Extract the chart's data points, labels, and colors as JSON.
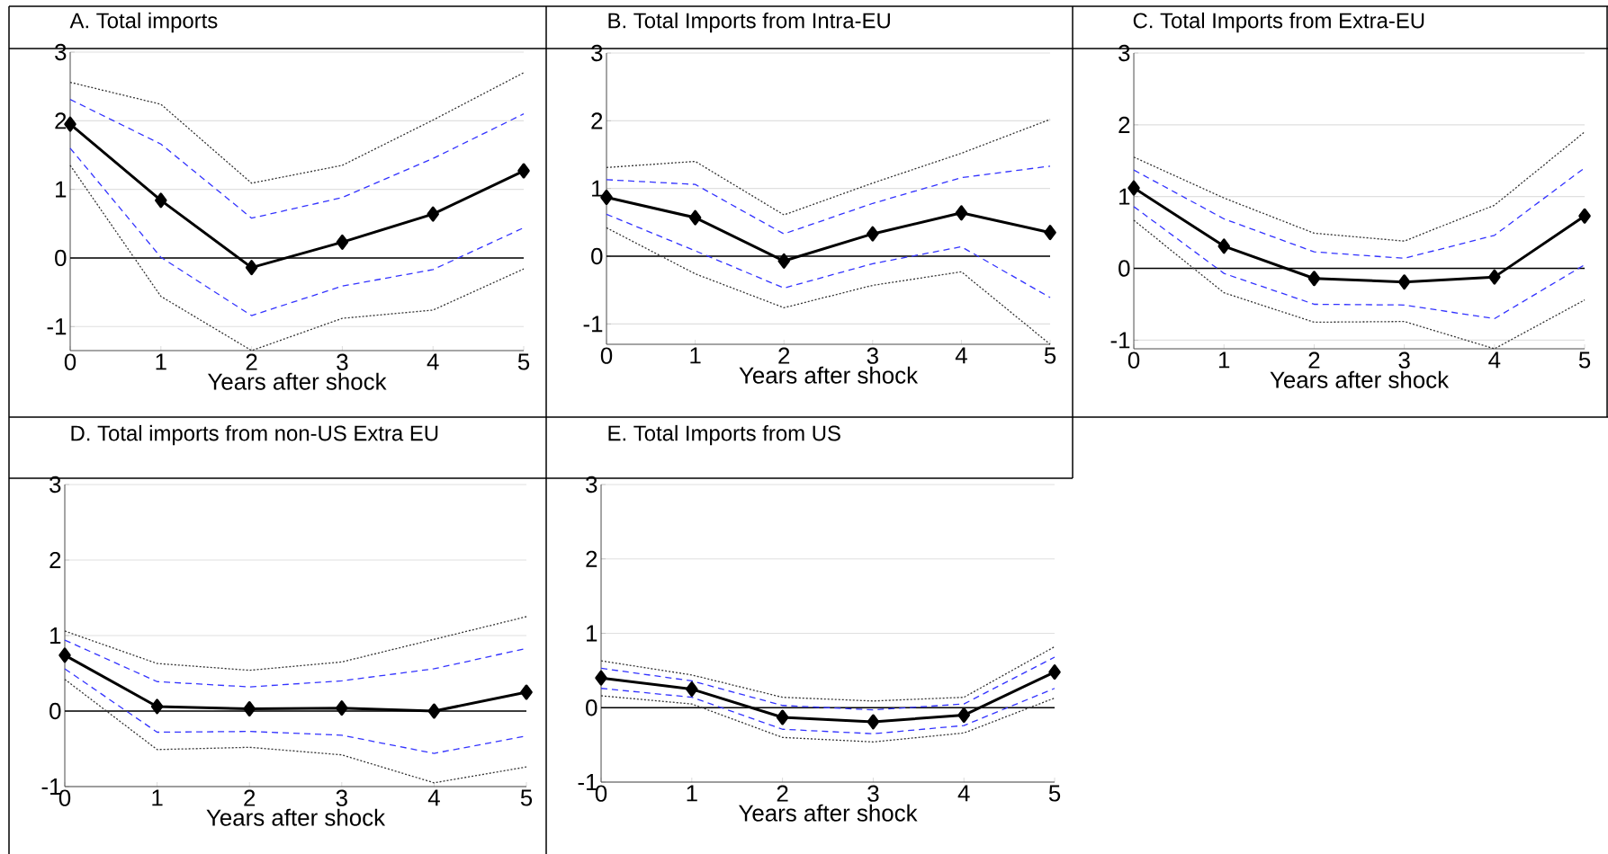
{
  "chart_data": [
    {
      "type": "line",
      "title": "A. Total imports",
      "xlabel": "Years after shock",
      "x": [
        0,
        1,
        2,
        3,
        4,
        5
      ],
      "xlim": [
        0,
        5
      ],
      "xticks": [
        0,
        1,
        2,
        3,
        4,
        5
      ],
      "ylim": [
        -1.35,
        3
      ],
      "yticks": [
        -1,
        0,
        1,
        2,
        3
      ],
      "grid": "y",
      "ref_lines": [
        {
          "axis": "y",
          "value": 0,
          "color": "#000000"
        }
      ],
      "series": [
        {
          "color": "#333333",
          "line_style": "dotted",
          "marker": "none",
          "values": [
            2.56,
            2.24,
            1.09,
            1.35,
            2.01,
            2.7
          ]
        },
        {
          "color": "#3333ff",
          "line_style": "dashed",
          "marker": "none",
          "values": [
            2.31,
            1.66,
            0.58,
            0.88,
            1.45,
            2.1
          ]
        },
        {
          "color": "#3333ff",
          "line_style": "dashed",
          "marker": "none",
          "values": [
            1.6,
            0.01,
            -0.84,
            -0.41,
            -0.17,
            0.44
          ]
        },
        {
          "color": "#333333",
          "line_style": "dotted",
          "marker": "none",
          "values": [
            1.35,
            -0.56,
            -1.35,
            -0.88,
            -0.76,
            -0.16
          ]
        },
        {
          "color": "#000000",
          "line_style": "solid",
          "marker": "diamond",
          "values": [
            1.95,
            0.84,
            -0.14,
            0.23,
            0.64,
            1.27
          ]
        }
      ]
    },
    {
      "type": "line",
      "title": "B. Total Imports from Intra-EU",
      "xlabel": "Years after shock",
      "x": [
        0,
        1,
        2,
        3,
        4,
        5
      ],
      "xlim": [
        0,
        5
      ],
      "xticks": [
        0,
        1,
        2,
        3,
        4,
        5
      ],
      "ylim": [
        -1.3,
        3
      ],
      "yticks": [
        -1,
        0,
        1,
        2,
        3
      ],
      "grid": "y",
      "ref_lines": [
        {
          "axis": "y",
          "value": 0,
          "color": "#000000"
        }
      ],
      "series": [
        {
          "color": "#333333",
          "line_style": "dotted",
          "marker": "none",
          "values": [
            1.31,
            1.4,
            0.61,
            1.08,
            1.52,
            2.02
          ]
        },
        {
          "color": "#3333ff",
          "line_style": "dashed",
          "marker": "none",
          "values": [
            1.13,
            1.06,
            0.33,
            0.78,
            1.16,
            1.33
          ]
        },
        {
          "color": "#3333ff",
          "line_style": "dashed",
          "marker": "none",
          "values": [
            0.62,
            0.08,
            -0.47,
            -0.11,
            0.14,
            -0.61
          ]
        },
        {
          "color": "#333333",
          "line_style": "dotted",
          "marker": "none",
          "values": [
            0.42,
            -0.26,
            -0.76,
            -0.43,
            -0.23,
            -1.3
          ]
        },
        {
          "color": "#000000",
          "line_style": "solid",
          "marker": "diamond",
          "values": [
            0.87,
            0.57,
            -0.07,
            0.33,
            0.64,
            0.35
          ]
        }
      ]
    },
    {
      "type": "line",
      "title": "C. Total Imports from Extra-EU",
      "xlabel": "Years after shock",
      "x": [
        0,
        1,
        2,
        3,
        4,
        5
      ],
      "xlim": [
        0,
        5
      ],
      "xticks": [
        0,
        1,
        2,
        3,
        4,
        5
      ],
      "ylim": [
        -1.12,
        3
      ],
      "yticks": [
        -1,
        0,
        1,
        2,
        3
      ],
      "grid": "y",
      "ref_lines": [
        {
          "axis": "y",
          "value": 0,
          "color": "#000000"
        }
      ],
      "series": [
        {
          "color": "#333333",
          "line_style": "dotted",
          "marker": "none",
          "values": [
            1.55,
            0.98,
            0.49,
            0.38,
            0.88,
            1.9
          ]
        },
        {
          "color": "#3333ff",
          "line_style": "dashed",
          "marker": "none",
          "values": [
            1.37,
            0.69,
            0.23,
            0.14,
            0.46,
            1.4
          ]
        },
        {
          "color": "#3333ff",
          "line_style": "dashed",
          "marker": "none",
          "values": [
            0.86,
            -0.07,
            -0.5,
            -0.51,
            -0.7,
            0.05
          ]
        },
        {
          "color": "#333333",
          "line_style": "dotted",
          "marker": "none",
          "values": [
            0.67,
            -0.34,
            -0.75,
            -0.74,
            -1.12,
            -0.44
          ]
        },
        {
          "color": "#000000",
          "line_style": "solid",
          "marker": "diamond",
          "values": [
            1.12,
            0.31,
            -0.14,
            -0.19,
            -0.12,
            0.73
          ]
        }
      ]
    },
    {
      "type": "line",
      "title": "D. Total imports from non-US Extra EU",
      "xlabel": "Years after shock",
      "x": [
        0,
        1,
        2,
        3,
        4,
        5
      ],
      "xlim": [
        0,
        5
      ],
      "xticks": [
        0,
        1,
        2,
        3,
        4,
        5
      ],
      "ylim": [
        -1,
        3
      ],
      "yticks": [
        -1,
        0,
        1,
        2,
        3
      ],
      "grid": "y",
      "ref_lines": [
        {
          "axis": "y",
          "value": 0,
          "color": "#000000"
        }
      ],
      "series": [
        {
          "color": "#333333",
          "line_style": "dotted",
          "marker": "none",
          "values": [
            1.06,
            0.63,
            0.54,
            0.65,
            0.95,
            1.25
          ]
        },
        {
          "color": "#3333ff",
          "line_style": "dashed",
          "marker": "none",
          "values": [
            0.94,
            0.39,
            0.32,
            0.4,
            0.56,
            0.83
          ]
        },
        {
          "color": "#3333ff",
          "line_style": "dashed",
          "marker": "none",
          "values": [
            0.56,
            -0.28,
            -0.27,
            -0.32,
            -0.56,
            -0.33
          ]
        },
        {
          "color": "#333333",
          "line_style": "dotted",
          "marker": "none",
          "values": [
            0.42,
            -0.51,
            -0.48,
            -0.58,
            -0.95,
            -0.74
          ]
        },
        {
          "color": "#000000",
          "line_style": "solid",
          "marker": "diamond",
          "values": [
            0.74,
            0.06,
            0.03,
            0.04,
            0.0,
            0.25
          ]
        }
      ]
    },
    {
      "type": "line",
      "title": "E. Total Imports from US",
      "xlabel": "Years after shock",
      "x": [
        0,
        1,
        2,
        3,
        4,
        5
      ],
      "xlim": [
        0,
        5
      ],
      "xticks": [
        0,
        1,
        2,
        3,
        4,
        5
      ],
      "ylim": [
        -1,
        3
      ],
      "yticks": [
        -1,
        0,
        1,
        2,
        3
      ],
      "grid": "y",
      "ref_lines": [
        {
          "axis": "y",
          "value": 0,
          "color": "#000000"
        }
      ],
      "series": [
        {
          "color": "#333333",
          "line_style": "dotted",
          "marker": "none",
          "values": [
            0.63,
            0.44,
            0.14,
            0.09,
            0.14,
            0.82
          ]
        },
        {
          "color": "#3333ff",
          "line_style": "dashed",
          "marker": "none",
          "values": [
            0.53,
            0.36,
            0.03,
            -0.03,
            0.05,
            0.68
          ]
        },
        {
          "color": "#3333ff",
          "line_style": "dashed",
          "marker": "none",
          "values": [
            0.26,
            0.14,
            -0.29,
            -0.35,
            -0.24,
            0.26
          ]
        },
        {
          "color": "#333333",
          "line_style": "dotted",
          "marker": "none",
          "values": [
            0.16,
            0.05,
            -0.4,
            -0.46,
            -0.34,
            0.13
          ]
        },
        {
          "color": "#000000",
          "line_style": "solid",
          "marker": "diamond",
          "values": [
            0.4,
            0.25,
            -0.13,
            -0.19,
            -0.1,
            0.48
          ]
        }
      ]
    }
  ]
}
